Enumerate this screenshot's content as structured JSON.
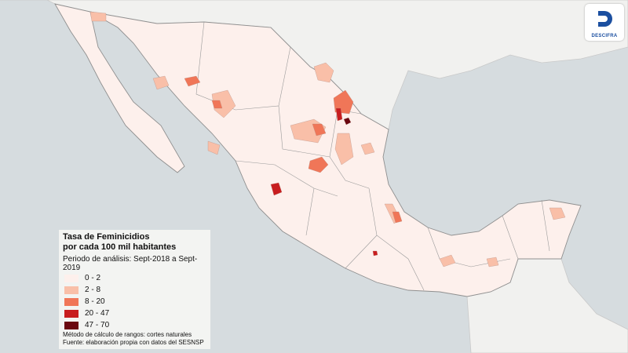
{
  "logo": {
    "text": "DESCIFRA"
  },
  "legend": {
    "title": [
      "Tasa de Feminicidios",
      "por cada 100 mil habitantes"
    ],
    "period": "Periodo de análisis: Sept-2018 a Sept-2019",
    "classes": [
      {
        "label": "0 - 2",
        "color": "#fdf0ec"
      },
      {
        "label": "2 - 8",
        "color": "#f9bfa8"
      },
      {
        "label": "8 - 20",
        "color": "#f07658"
      },
      {
        "label": "20 - 47",
        "color": "#c81d1f"
      },
      {
        "label": "47 - 70",
        "color": "#6b0710"
      }
    ],
    "notes": [
      "Método de cálculo de rangos: cortes naturales",
      "Fuente: elaboración propia con datos del SESNSP"
    ]
  }
}
